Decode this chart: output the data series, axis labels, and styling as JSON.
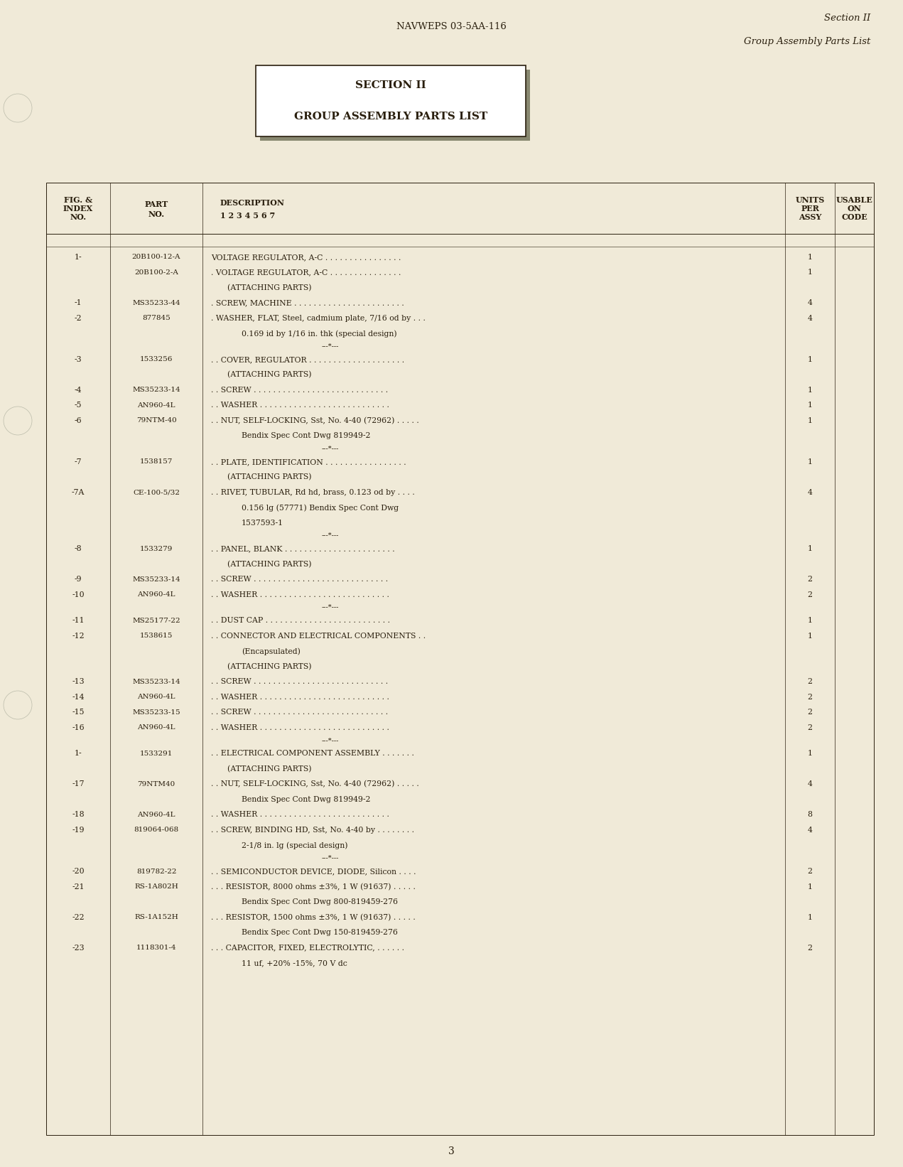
{
  "page_bg": "#f0ead8",
  "text_color": "#2a1f0e",
  "header_center": "NAVWEPS 03-5AA-116",
  "header_right_line1": "Section II",
  "header_right_line2": "Group Assembly Parts List",
  "section_box_line1": "SECTION II",
  "section_box_line2": "GROUP ASSEMBLY PARTS LIST",
  "page_number": "3",
  "rows": [
    {
      "fig": "1-",
      "part": "20B100-12-A",
      "desc": "VOLTAGE REGULATOR, A-C . . . . . . . . . . . . . . . .",
      "indent": 0,
      "units": "1",
      "sep_before": false,
      "sep_after": false
    },
    {
      "fig": "",
      "part": "20B100-2-A",
      "desc": ". VOLTAGE REGULATOR, A-C . . . . . . . . . . . . . . .",
      "indent": 0,
      "units": "1",
      "sep_before": false,
      "sep_after": false
    },
    {
      "fig": "",
      "part": "",
      "desc": "(ATTACHING PARTS)",
      "indent": 2,
      "units": "",
      "sep_before": false,
      "sep_after": false
    },
    {
      "fig": "-1",
      "part": "MS35233-44",
      "desc": ". SCREW, MACHINE . . . . . . . . . . . . . . . . . . . . . . .",
      "indent": 0,
      "units": "4",
      "sep_before": false,
      "sep_after": false
    },
    {
      "fig": "-2",
      "part": "877845",
      "desc": ". WASHER, FLAT, Steel, cadmium plate, 7/16 od by . . .",
      "indent": 0,
      "units": "4",
      "sep_before": false,
      "sep_after": false
    },
    {
      "fig": "",
      "part": "",
      "desc": "0.169 id by 1/16 in. thk (special design)",
      "indent": 3,
      "units": "",
      "sep_before": false,
      "sep_after": true
    },
    {
      "fig": "-3",
      "part": "1533256",
      "desc": ". . COVER, REGULATOR . . . . . . . . . . . . . . . . . . . .",
      "indent": 0,
      "units": "1",
      "sep_before": false,
      "sep_after": false
    },
    {
      "fig": "",
      "part": "",
      "desc": "(ATTACHING PARTS)",
      "indent": 2,
      "units": "",
      "sep_before": false,
      "sep_after": false
    },
    {
      "fig": "-4",
      "part": "MS35233-14",
      "desc": ". . SCREW . . . . . . . . . . . . . . . . . . . . . . . . . . . .",
      "indent": 0,
      "units": "1",
      "sep_before": false,
      "sep_after": false
    },
    {
      "fig": "-5",
      "part": "AN960-4L",
      "desc": ". . WASHER . . . . . . . . . . . . . . . . . . . . . . . . . . .",
      "indent": 0,
      "units": "1",
      "sep_before": false,
      "sep_after": false
    },
    {
      "fig": "-6",
      "part": "79NTM-40",
      "desc": ". . NUT, SELF-LOCKING, Sst, No. 4-40 (72962) . . . . .",
      "indent": 0,
      "units": "1",
      "sep_before": false,
      "sep_after": false
    },
    {
      "fig": "",
      "part": "",
      "desc": "Bendix Spec Cont Dwg 819949-2",
      "indent": 3,
      "units": "",
      "sep_before": false,
      "sep_after": true
    },
    {
      "fig": "-7",
      "part": "1538157",
      "desc": ". . PLATE, IDENTIFICATION . . . . . . . . . . . . . . . . .",
      "indent": 0,
      "units": "1",
      "sep_before": false,
      "sep_after": false
    },
    {
      "fig": "",
      "part": "",
      "desc": "(ATTACHING PARTS)",
      "indent": 2,
      "units": "",
      "sep_before": false,
      "sep_after": false
    },
    {
      "fig": "-7A",
      "part": "CE-100-5/32",
      "desc": ". . RIVET, TUBULAR, Rd hd, brass, 0.123 od by . . . .",
      "indent": 0,
      "units": "4",
      "sep_before": false,
      "sep_after": false
    },
    {
      "fig": "",
      "part": "",
      "desc": "0.156 lg (57771) Bendix Spec Cont Dwg",
      "indent": 3,
      "units": "",
      "sep_before": false,
      "sep_after": false
    },
    {
      "fig": "",
      "part": "",
      "desc": "1537593-1",
      "indent": 3,
      "units": "",
      "sep_before": false,
      "sep_after": true
    },
    {
      "fig": "-8",
      "part": "1533279",
      "desc": ". . PANEL, BLANK . . . . . . . . . . . . . . . . . . . . . . .",
      "indent": 0,
      "units": "1",
      "sep_before": false,
      "sep_after": false
    },
    {
      "fig": "",
      "part": "",
      "desc": "(ATTACHING PARTS)",
      "indent": 2,
      "units": "",
      "sep_before": false,
      "sep_after": false
    },
    {
      "fig": "-9",
      "part": "MS35233-14",
      "desc": ". . SCREW . . . . . . . . . . . . . . . . . . . . . . . . . . . .",
      "indent": 0,
      "units": "2",
      "sep_before": false,
      "sep_after": false
    },
    {
      "fig": "-10",
      "part": "AN960-4L",
      "desc": ". . WASHER . . . . . . . . . . . . . . . . . . . . . . . . . . .",
      "indent": 0,
      "units": "2",
      "sep_before": false,
      "sep_after": true
    },
    {
      "fig": "-11",
      "part": "MS25177-22",
      "desc": ". . DUST CAP . . . . . . . . . . . . . . . . . . . . . . . . . .",
      "indent": 0,
      "units": "1",
      "sep_before": false,
      "sep_after": false
    },
    {
      "fig": "-12",
      "part": "1538615",
      "desc": ". . CONNECTOR AND ELECTRICAL COMPONENTS . .",
      "indent": 0,
      "units": "1",
      "sep_before": false,
      "sep_after": false
    },
    {
      "fig": "",
      "part": "",
      "desc": "(Encapsulated)",
      "indent": 3,
      "units": "",
      "sep_before": false,
      "sep_after": false
    },
    {
      "fig": "",
      "part": "",
      "desc": "(ATTACHING PARTS)",
      "indent": 2,
      "units": "",
      "sep_before": false,
      "sep_after": false
    },
    {
      "fig": "-13",
      "part": "MS35233-14",
      "desc": ". . SCREW . . . . . . . . . . . . . . . . . . . . . . . . . . . .",
      "indent": 0,
      "units": "2",
      "sep_before": false,
      "sep_after": false
    },
    {
      "fig": "-14",
      "part": "AN960-4L",
      "desc": ". . WASHER . . . . . . . . . . . . . . . . . . . . . . . . . . .",
      "indent": 0,
      "units": "2",
      "sep_before": false,
      "sep_after": false
    },
    {
      "fig": "-15",
      "part": "MS35233-15",
      "desc": ". . SCREW . . . . . . . . . . . . . . . . . . . . . . . . . . . .",
      "indent": 0,
      "units": "2",
      "sep_before": false,
      "sep_after": false
    },
    {
      "fig": "-16",
      "part": "AN960-4L",
      "desc": ". . WASHER . . . . . . . . . . . . . . . . . . . . . . . . . . .",
      "indent": 0,
      "units": "2",
      "sep_before": false,
      "sep_after": true
    },
    {
      "fig": "1-",
      "part": "1533291",
      "desc": ". . ELECTRICAL COMPONENT ASSEMBLY . . . . . . .",
      "indent": 0,
      "units": "1",
      "sep_before": false,
      "sep_after": false
    },
    {
      "fig": "",
      "part": "",
      "desc": "(ATTACHING PARTS)",
      "indent": 2,
      "units": "",
      "sep_before": false,
      "sep_after": false
    },
    {
      "fig": "-17",
      "part": "79NTM40",
      "desc": ". . NUT, SELF-LOCKING, Sst, No. 4-40 (72962) . . . . .",
      "indent": 0,
      "units": "4",
      "sep_before": false,
      "sep_after": false
    },
    {
      "fig": "",
      "part": "",
      "desc": "Bendix Spec Cont Dwg 819949-2",
      "indent": 3,
      "units": "",
      "sep_before": false,
      "sep_after": false
    },
    {
      "fig": "-18",
      "part": "AN960-4L",
      "desc": ". . WASHER . . . . . . . . . . . . . . . . . . . . . . . . . . .",
      "indent": 0,
      "units": "8",
      "sep_before": false,
      "sep_after": false
    },
    {
      "fig": "-19",
      "part": "819064-068",
      "desc": ". . SCREW, BINDING HD, Sst, No. 4-40 by . . . . . . . .",
      "indent": 0,
      "units": "4",
      "sep_before": false,
      "sep_after": false
    },
    {
      "fig": "",
      "part": "",
      "desc": "2-1/8 in. lg (special design)",
      "indent": 3,
      "units": "",
      "sep_before": false,
      "sep_after": true
    },
    {
      "fig": "-20",
      "part": "819782-22",
      "desc": ". . SEMICONDUCTOR DEVICE, DIODE, Silicon . . . .",
      "indent": 0,
      "units": "2",
      "sep_before": false,
      "sep_after": false
    },
    {
      "fig": "-21",
      "part": "RS-1A802H",
      "desc": ". . . RESISTOR, 8000 ohms ±3%, 1 W (91637) . . . . .",
      "indent": 0,
      "units": "1",
      "sep_before": false,
      "sep_after": false
    },
    {
      "fig": "",
      "part": "",
      "desc": "Bendix Spec Cont Dwg 800-819459-276",
      "indent": 3,
      "units": "",
      "sep_before": false,
      "sep_after": false
    },
    {
      "fig": "-22",
      "part": "RS-1A152H",
      "desc": ". . . RESISTOR, 1500 ohms ±3%, 1 W (91637) . . . . .",
      "indent": 0,
      "units": "1",
      "sep_before": false,
      "sep_after": false
    },
    {
      "fig": "",
      "part": "",
      "desc": "Bendix Spec Cont Dwg 150-819459-276",
      "indent": 3,
      "units": "",
      "sep_before": false,
      "sep_after": false
    },
    {
      "fig": "-23",
      "part": "1118301-4",
      "desc": ". . . CAPACITOR, FIXED, ELECTROLYTIC, . . . . . .",
      "indent": 0,
      "units": "2",
      "sep_before": false,
      "sep_after": false
    },
    {
      "fig": "",
      "part": "",
      "desc": "11 uf, +20% -15%, 70 V dc",
      "indent": 3,
      "units": "",
      "sep_before": false,
      "sep_after": false
    }
  ]
}
